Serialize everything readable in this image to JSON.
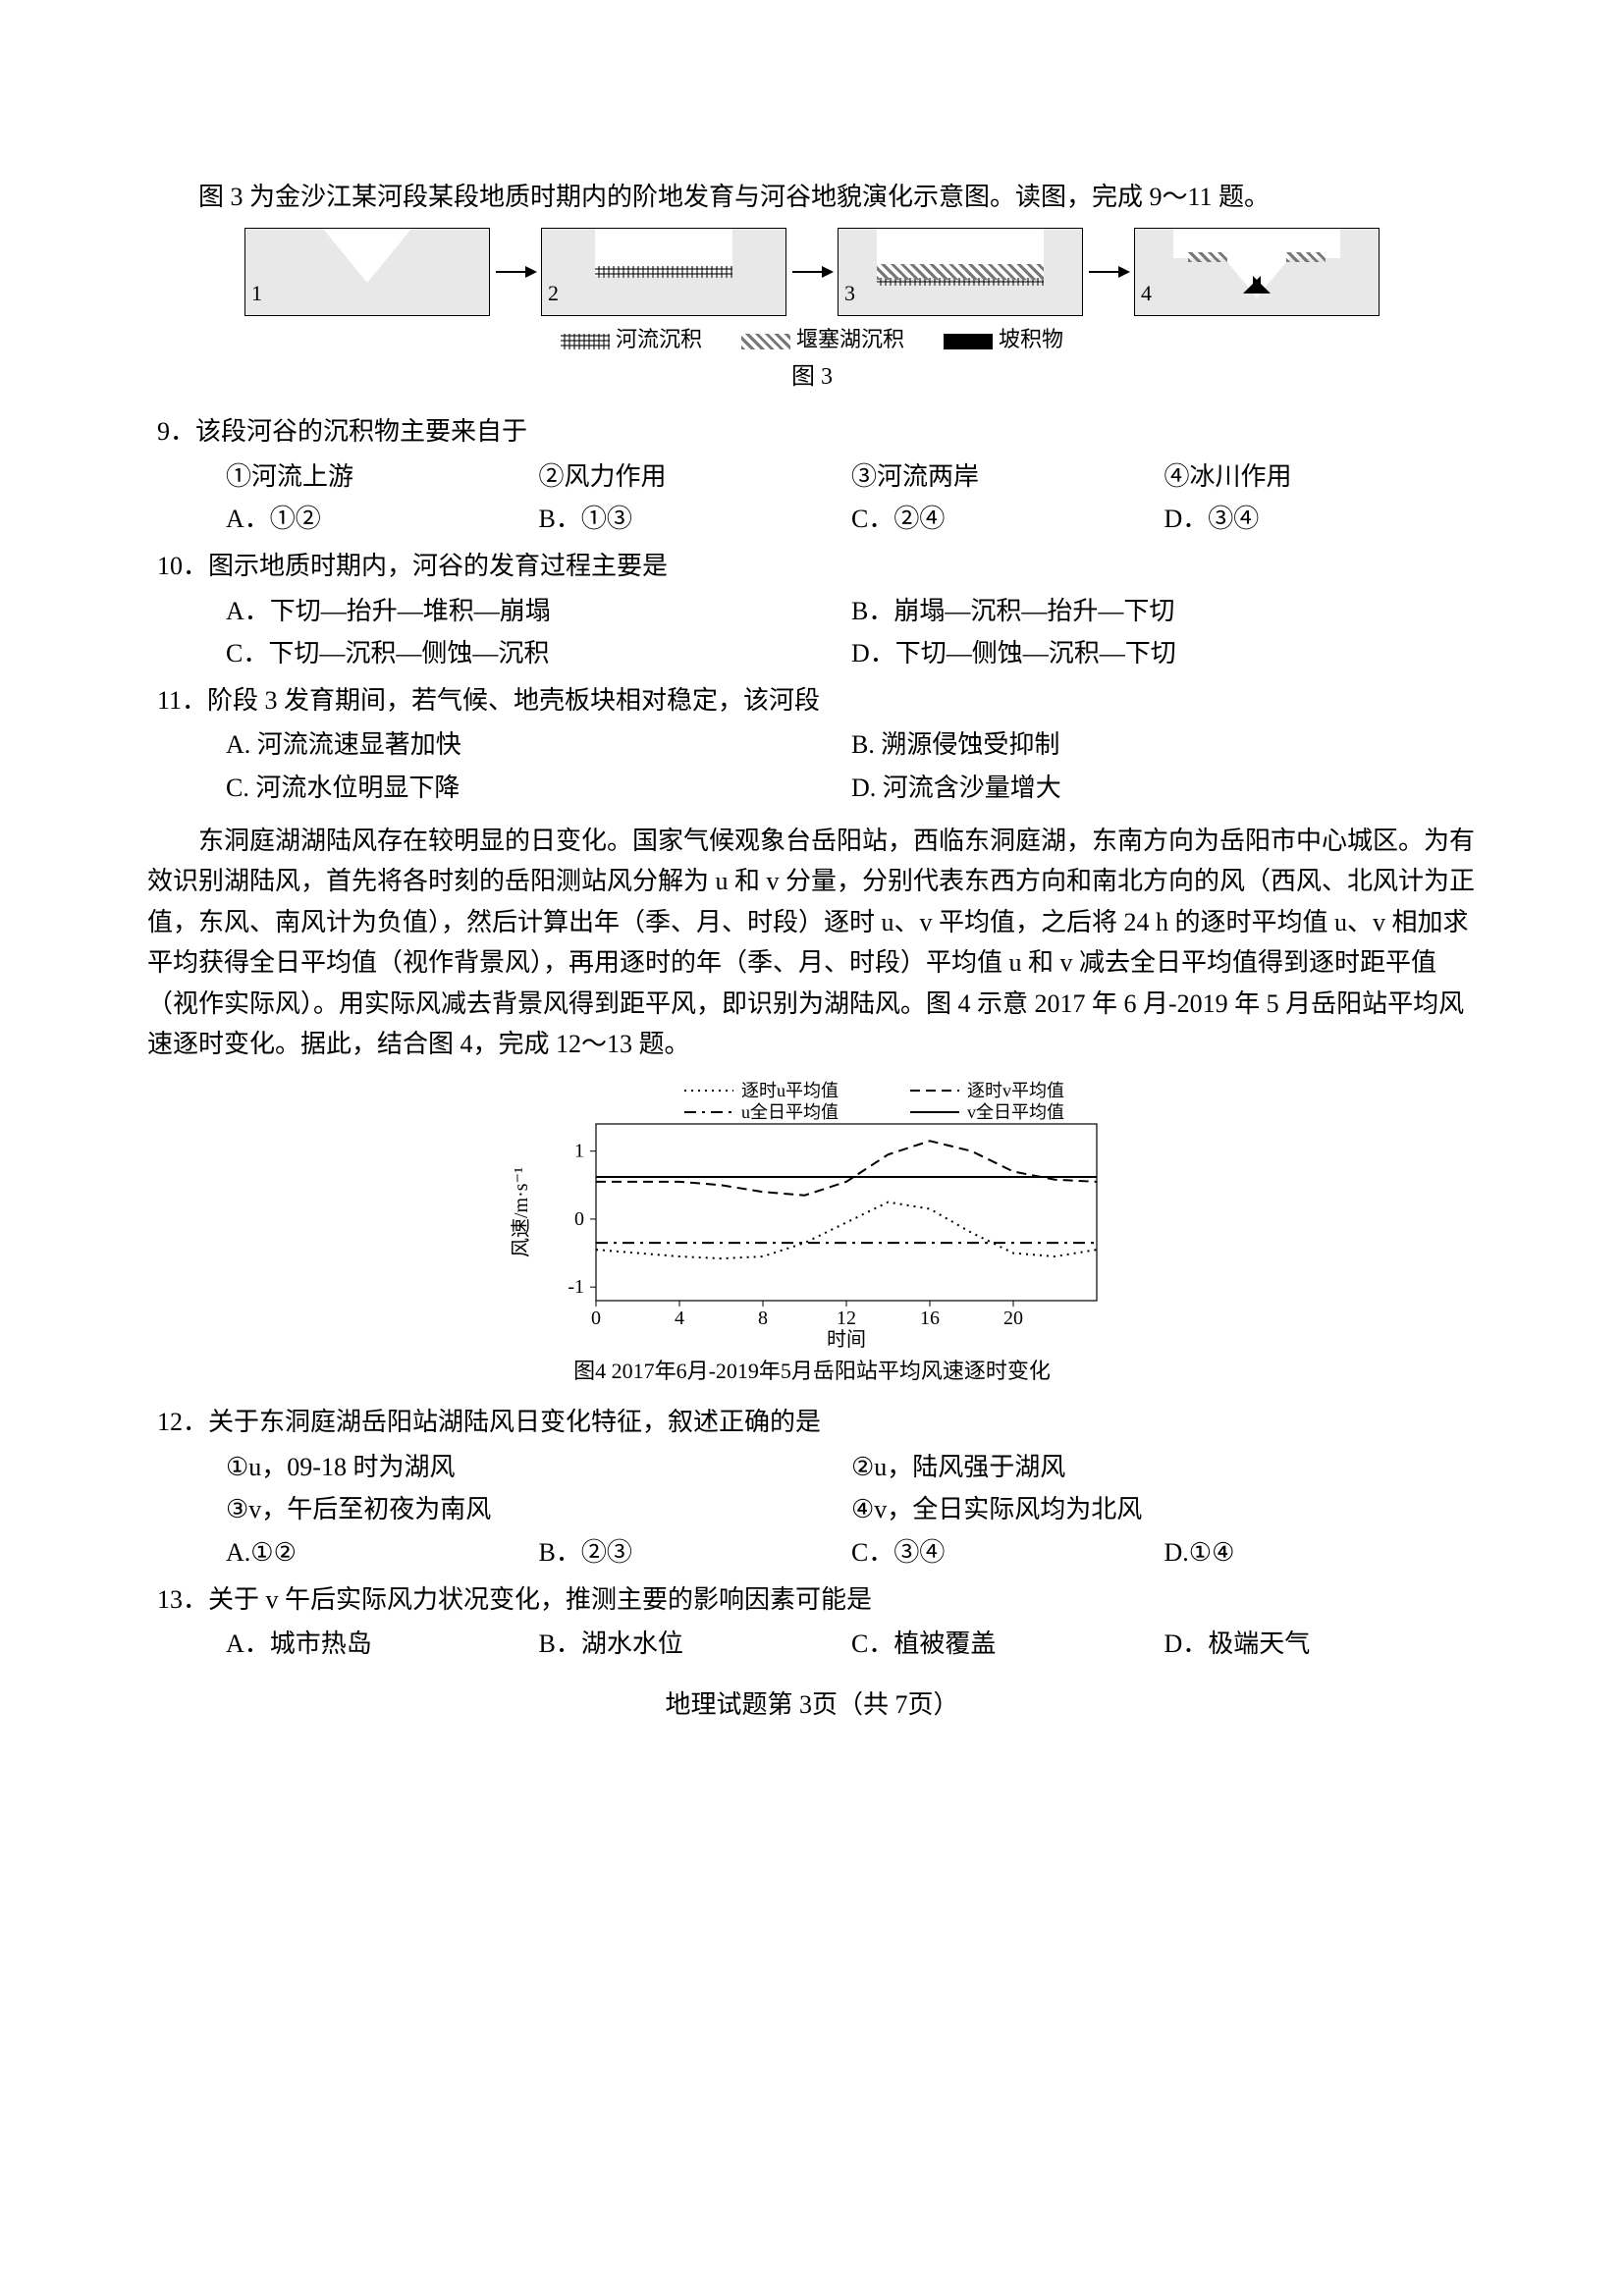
{
  "intro1": "图 3 为金沙江某河段某段地质时期内的阶地发育与河谷地貌演化示意图。读图，完成 9～11 题。",
  "fig3": {
    "panels": [
      "1",
      "2",
      "3",
      "4"
    ],
    "legend": [
      {
        "label": "河流沉积",
        "swatch": "hatch1"
      },
      {
        "label": "堰塞湖沉积",
        "swatch": "hatch2"
      },
      {
        "label": "坡积物",
        "swatch": "hatch3"
      }
    ],
    "caption": "图 3"
  },
  "q9": {
    "stem": "9．该段河谷的沉积物主要来自于",
    "stmts": [
      "①河流上游",
      "②风力作用",
      "③河流两岸",
      "④冰川作用"
    ],
    "opts": [
      "A．①②",
      "B．①③",
      "C．②④",
      "D．③④"
    ]
  },
  "q10": {
    "stem": "10．图示地质时期内，河谷的发育过程主要是",
    "opts": [
      "A．下切—抬升—堆积—崩塌",
      "B．崩塌—沉积—抬升—下切",
      "C．下切—沉积—侧蚀—沉积",
      "D．下切—侧蚀—沉积—下切"
    ]
  },
  "q11": {
    "stem": "11．阶段 3 发育期间，若气候、地壳板块相对稳定，该河段",
    "opts": [
      "A. 河流流速显著加快",
      "B. 溯源侵蚀受抑制",
      "C. 河流水位明显下降",
      "D. 河流含沙量增大"
    ]
  },
  "passage2": "东洞庭湖湖陆风存在较明显的日变化。国家气候观象台岳阳站，西临东洞庭湖，东南方向为岳阳市中心城区。为有效识别湖陆风，首先将各时刻的岳阳测站风分解为 u 和 v 分量，分别代表东西方向和南北方向的风（西风、北风计为正值，东风、南风计为负值），然后计算出年（季、月、时段）逐时 u、v 平均值，之后将 24 h 的逐时平均值 u、v 相加求平均获得全日平均值（视作背景风），再用逐时的年（季、月、时段）平均值 u 和 v 减去全日平均值得到逐时距平值（视作实际风）。用实际风减去背景风得到距平风，即识别为湖陆风。图 4 示意 2017 年 6 月-2019 年 5 月岳阳站平均风速逐时变化。据此，结合图 4，完成 12～13 题。",
  "chart": {
    "type": "line",
    "legend": [
      "逐时u平均值",
      "逐时v平均值",
      "u全日平均值",
      "v全日平均值"
    ],
    "xlabel": "时间",
    "ylabel": "风速/m·s⁻¹",
    "xticks": [
      0,
      4,
      8,
      12,
      16,
      20
    ],
    "yticks": [
      -1,
      0,
      1
    ],
    "xlim": [
      0,
      24
    ],
    "ylim": [
      -1.2,
      1.4
    ],
    "series": {
      "u_hourly": {
        "style": "dotted",
        "color": "#000",
        "data": [
          [
            0,
            -0.45
          ],
          [
            2,
            -0.5
          ],
          [
            4,
            -0.55
          ],
          [
            6,
            -0.58
          ],
          [
            8,
            -0.55
          ],
          [
            10,
            -0.35
          ],
          [
            12,
            -0.05
          ],
          [
            14,
            0.25
          ],
          [
            16,
            0.15
          ],
          [
            18,
            -0.2
          ],
          [
            20,
            -0.5
          ],
          [
            22,
            -0.55
          ],
          [
            24,
            -0.45
          ]
        ]
      },
      "v_hourly": {
        "style": "dashed",
        "color": "#000",
        "data": [
          [
            0,
            0.55
          ],
          [
            2,
            0.55
          ],
          [
            4,
            0.55
          ],
          [
            6,
            0.5
          ],
          [
            8,
            0.4
          ],
          [
            10,
            0.35
          ],
          [
            12,
            0.55
          ],
          [
            14,
            0.95
          ],
          [
            16,
            1.15
          ],
          [
            18,
            1.0
          ],
          [
            20,
            0.7
          ],
          [
            22,
            0.58
          ],
          [
            24,
            0.55
          ]
        ]
      },
      "u_daily": {
        "style": "dashdot",
        "color": "#000",
        "data": [
          [
            0,
            -0.35
          ],
          [
            24,
            -0.35
          ]
        ]
      },
      "v_daily": {
        "style": "solid",
        "color": "#000",
        "data": [
          [
            0,
            0.62
          ],
          [
            24,
            0.62
          ]
        ]
      }
    },
    "caption": "图4 2017年6月-2019年5月岳阳站平均风速逐时变化",
    "grid_color": "#aaa",
    "bg": "#ffffff",
    "label_fontsize": 20
  },
  "q12": {
    "stem": "12．关于东洞庭湖岳阳站湖陆风日变化特征，叙述正确的是",
    "stmts": [
      "①u，09-18 时为湖风",
      "②u，陆风强于湖风",
      "③v，午后至初夜为南风",
      "④v，全日实际风均为北风"
    ],
    "opts": [
      "A.①②",
      "B．②③",
      "C．③④",
      "D.①④"
    ]
  },
  "q13": {
    "stem": "13．关于 v 午后实际风力状况变化，推测主要的影响因素可能是",
    "opts": [
      "A．城市热岛",
      "B．湖水水位",
      "C．植被覆盖",
      "D．极端天气"
    ]
  },
  "footer": "地理试题第 3页（共 7页）"
}
